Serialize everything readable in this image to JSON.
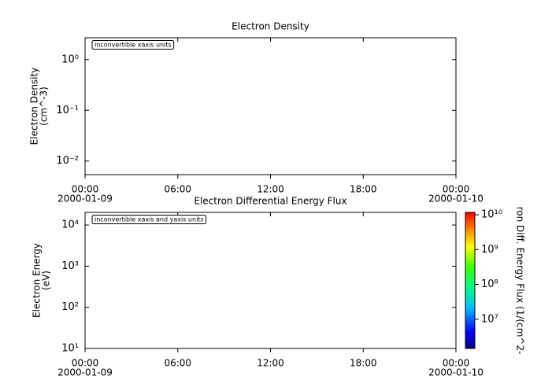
{
  "chart_data": [
    {
      "type": "line",
      "title": "Electron Density",
      "ylabel": [
        "Electron Density",
        "(cm^-3)"
      ],
      "annotation": "inconvertible xaxis units",
      "log_y": true,
      "xlim": [
        0,
        24
      ],
      "xticks": [
        {
          "value": 0,
          "label": "00:00",
          "date": "2000-01-09"
        },
        {
          "value": 6,
          "label": "06:00"
        },
        {
          "value": 12,
          "label": "12:00"
        },
        {
          "value": 18,
          "label": "18:00"
        },
        {
          "value": 24,
          "label": "00:00",
          "date": "2000-01-10"
        }
      ],
      "ylim": [
        0.0054,
        2.7
      ],
      "yticks": [
        {
          "value": 1,
          "label": "10⁰"
        },
        {
          "value": 0.1,
          "label": "10⁻¹"
        },
        {
          "value": 0.01,
          "label": "10⁻²"
        }
      ]
    },
    {
      "type": "spectrogram",
      "title": "Electron Differential Energy Flux",
      "ylabel": [
        "Electron Energy",
        "(eV)"
      ],
      "annotation": "inconvertible xaxis and yaxis units",
      "log_y": true,
      "xlim": [
        0,
        24
      ],
      "xticks": [
        {
          "value": 0,
          "label": "00:00",
          "date": "2000-01-09"
        },
        {
          "value": 6,
          "label": "06:00"
        },
        {
          "value": 12,
          "label": "12:00"
        },
        {
          "value": 18,
          "label": "18:00"
        },
        {
          "value": 24,
          "label": "00:00",
          "date": "2000-01-10"
        }
      ],
      "ylim": [
        10,
        20300
      ],
      "yticks": [
        {
          "value": 10000,
          "label": "10⁴"
        },
        {
          "value": 1000,
          "label": "10³"
        },
        {
          "value": 100,
          "label": "10²"
        },
        {
          "value": 10,
          "label": "10¹"
        }
      ],
      "colorbar": {
        "label": "ron Diff. Energy Flux (1/(cm^2-",
        "zlim": [
          1440000,
          11700000000
        ],
        "zticks": [
          {
            "value": 10000000000,
            "label": "10¹⁰"
          },
          {
            "value": 1000000000,
            "label": "10⁹"
          },
          {
            "value": 100000000,
            "label": "10⁸"
          },
          {
            "value": 10000000,
            "label": "10⁷"
          }
        ]
      }
    }
  ]
}
